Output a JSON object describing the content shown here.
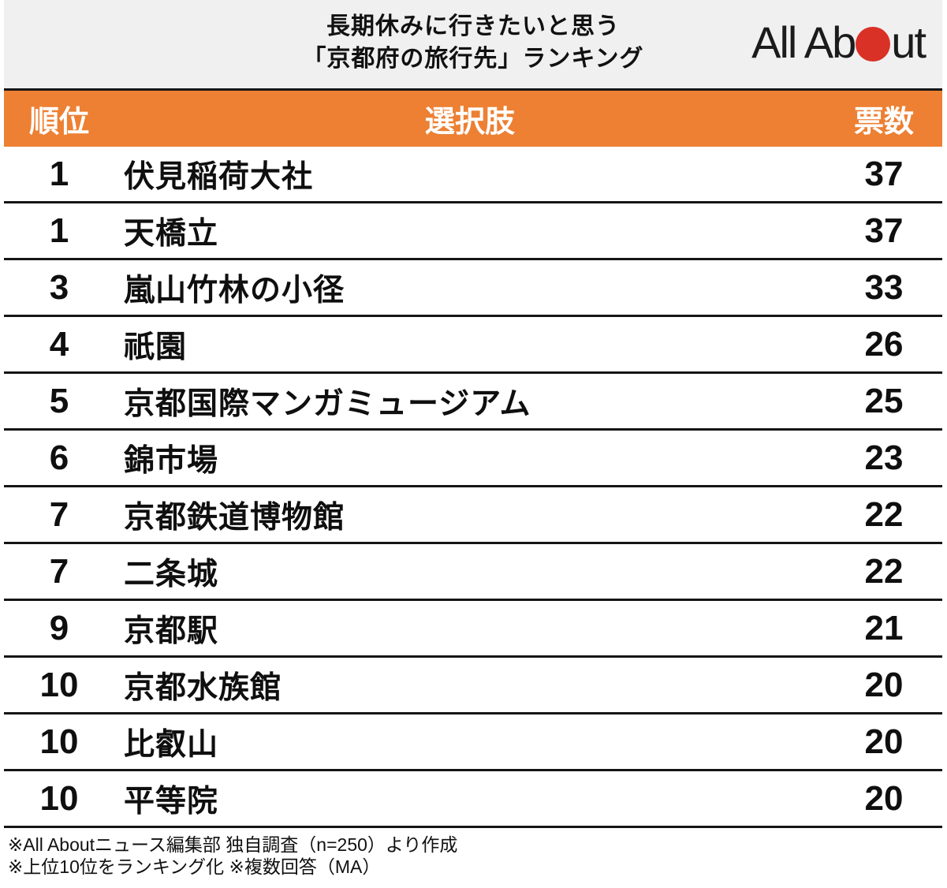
{
  "header": {
    "title_line1": "長期休みに行きたいと思う",
    "title_line2": "「京都府の旅行先」ランキング",
    "logo": {
      "text_before": "All Ab",
      "text_after": "ut",
      "dot_meaning": "red-circle-letter-o"
    }
  },
  "chart_data": {
    "type": "table",
    "title": "長期休みに行きたいと思う「京都府の旅行先」ランキング",
    "columns": [
      "順位",
      "選択肢",
      "票数"
    ],
    "rows": [
      [
        "1",
        "伏見稲荷大社",
        "37"
      ],
      [
        "1",
        "天橋立",
        "37"
      ],
      [
        "3",
        "嵐山竹林の小径",
        "33"
      ],
      [
        "4",
        "祇園",
        "26"
      ],
      [
        "5",
        "京都国際マンガミュージアム",
        "25"
      ],
      [
        "6",
        "錦市場",
        "23"
      ],
      [
        "7",
        "京都鉄道博物館",
        "22"
      ],
      [
        "7",
        "二条城",
        "22"
      ],
      [
        "9",
        "京都駅",
        "21"
      ],
      [
        "10",
        "京都水族館",
        "20"
      ],
      [
        "10",
        "比叡山",
        "20"
      ],
      [
        "10",
        "平等院",
        "20"
      ]
    ]
  },
  "footer": {
    "note1": "※All Aboutニュース編集部 独自調査（n=250）より作成",
    "note2": "※上位10位をランキング化 ※複数回答（MA）"
  },
  "colors": {
    "accent_orange": "#ed8033",
    "logo_red": "#da3126",
    "header_gray": "#f0f0f1",
    "line_black": "#151515",
    "header_text": "#ffffff"
  }
}
